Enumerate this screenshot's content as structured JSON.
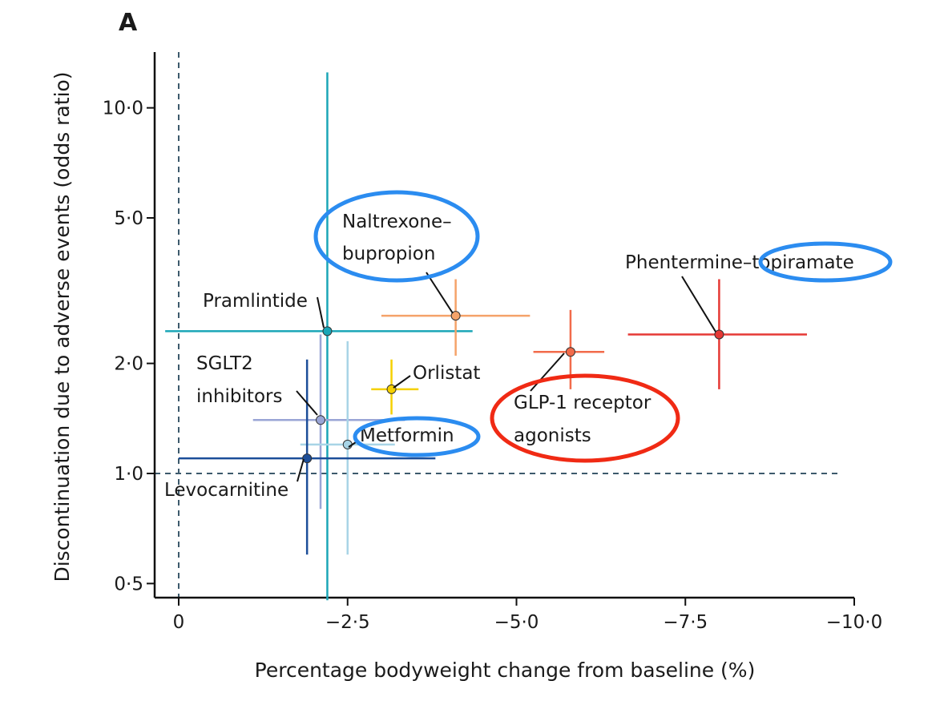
{
  "panel_label": "A",
  "chart_data": {
    "type": "scatter",
    "title": "",
    "xlabel": "Percentage bodyweight change from baseline (%)",
    "ylabel": "Discontinuation due to adverse events (odds ratio)",
    "x_axis": {
      "reversed": true,
      "range": [
        0.2,
        -10.0
      ],
      "ticks": [
        0,
        -2.5,
        -5.0,
        -7.5,
        -10.0
      ],
      "tick_labels": [
        "0",
        "−2·5",
        "−5·0",
        "−7·5",
        "−10·0"
      ]
    },
    "y_axis": {
      "scale": "log",
      "range": [
        0.45,
        13.0
      ],
      "ticks": [
        0.5,
        1.0,
        2.0,
        5.0,
        10.0
      ],
      "tick_labels": [
        "0·5",
        "1·0",
        "2·0",
        "5·0",
        "10·0"
      ]
    },
    "reference_lines": {
      "x": 0,
      "y": 1.0,
      "style": "dashed"
    },
    "grid": false,
    "points": [
      {
        "label": "Pramlintide",
        "x": -2.2,
        "y": 2.45,
        "x_ci": [
          0.2,
          -4.35
        ],
        "y_ci": [
          0.45,
          12.5
        ],
        "color": "#1aa6b7"
      },
      {
        "label": "Naltrexone–bupropion",
        "label_lines": [
          "Naltrexone–",
          "bupropion"
        ],
        "x": -4.1,
        "y": 2.7,
        "x_ci": [
          -3.0,
          -5.2
        ],
        "y_ci": [
          2.1,
          3.4
        ],
        "color": "#f5a36a"
      },
      {
        "label": "Phentermine–topiramate",
        "x": -8.0,
        "y": 2.4,
        "x_ci": [
          -6.65,
          -9.3
        ],
        "y_ci": [
          1.7,
          3.4
        ],
        "color": "#e53935"
      },
      {
        "label": "GLP-1 receptor agonists",
        "label_lines": [
          "GLP-1 receptor",
          "agonists"
        ],
        "x": -5.8,
        "y": 2.15,
        "x_ci": [
          -5.25,
          -6.3
        ],
        "y_ci": [
          1.7,
          2.8
        ],
        "color": "#f26b4b"
      },
      {
        "label": "Orlistat",
        "x": -3.15,
        "y": 1.7,
        "x_ci": [
          -2.85,
          -3.55
        ],
        "y_ci": [
          1.45,
          2.05
        ],
        "color": "#f5d000"
      },
      {
        "label": "SGLT2 inhibitors",
        "label_lines": [
          "SGLT2",
          "inhibitors"
        ],
        "x": -2.1,
        "y": 1.4,
        "x_ci": [
          -1.1,
          -3.35
        ],
        "y_ci": [
          0.8,
          2.4
        ],
        "color": "#9aa5d6"
      },
      {
        "label": "Metformin",
        "x": -2.5,
        "y": 1.2,
        "x_ci": [
          -1.8,
          -3.2
        ],
        "y_ci": [
          0.6,
          2.3
        ],
        "color": "#a8d4e6"
      },
      {
        "label": "Levocarnitine",
        "x": -1.9,
        "y": 1.1,
        "x_ci": [
          0.0,
          -3.8
        ],
        "y_ci": [
          0.6,
          2.05
        ],
        "color": "#1c4e99"
      }
    ],
    "highlights": [
      {
        "target": "Naltrexone–bupropion",
        "color": "#2b8cf0"
      },
      {
        "target": "topiramate",
        "color": "#2b8cf0"
      },
      {
        "target": "Metformin",
        "color": "#2b8cf0"
      },
      {
        "target": "GLP-1 receptor agonists",
        "color": "#f02a14"
      }
    ]
  }
}
